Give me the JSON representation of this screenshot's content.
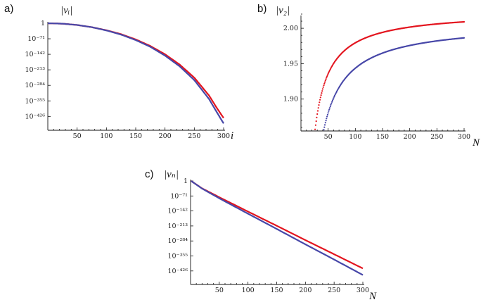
{
  "colors": {
    "red": "#e3141e",
    "blue": "#4747a8",
    "axis": "#111111"
  },
  "chart_data": [
    {
      "panel": "a)",
      "type": "line",
      "ylabel": "|v_i|",
      "ylabel_display": "|vᵢ|",
      "xlabel": "i",
      "xlim": [
        0,
        300
      ],
      "ylim_exponent": [
        -470,
        0
      ],
      "xticks": [
        50,
        100,
        150,
        200,
        250,
        300
      ],
      "yticks": [
        {
          "exp": 0,
          "label": "1"
        },
        {
          "exp": -71,
          "label": "10⁻⁷¹"
        },
        {
          "exp": -142,
          "label": "10⁻¹⁴²"
        },
        {
          "exp": -213,
          "label": "10⁻²¹³"
        },
        {
          "exp": -284,
          "label": "10⁻²⁸⁴"
        },
        {
          "exp": -355,
          "label": "10⁻³⁵⁵"
        },
        {
          "exp": -426,
          "label": "10⁻⁴²⁶"
        }
      ],
      "scale": "log",
      "series": [
        {
          "color": "red",
          "x": [
            0,
            25,
            50,
            75,
            100,
            125,
            150,
            175,
            200,
            225,
            250,
            275,
            290,
            300
          ],
          "y_exp": [
            0,
            -2,
            -8,
            -18,
            -32,
            -50,
            -74,
            -104,
            -142,
            -189,
            -249,
            -330,
            -394,
            -433
          ]
        },
        {
          "color": "blue",
          "x": [
            0,
            25,
            50,
            75,
            100,
            125,
            150,
            175,
            200,
            225,
            250,
            275,
            290,
            300
          ],
          "y_exp": [
            0,
            -2,
            -8,
            -18,
            -33,
            -52,
            -77,
            -108,
            -148,
            -197,
            -260,
            -346,
            -414,
            -458
          ]
        }
      ]
    },
    {
      "panel": "b)",
      "type": "scatter",
      "ylabel": "|v_2|",
      "ylabel_display": "|v₂|",
      "xlabel": "N",
      "xlim": [
        0,
        300
      ],
      "ylim": [
        1.855,
        2.02
      ],
      "xticks": [
        50,
        100,
        150,
        200,
        250,
        300
      ],
      "yticks": [
        {
          "value": 1.9,
          "label": "1.90"
        },
        {
          "value": 1.95,
          "label": "1.95"
        },
        {
          "value": 2.0,
          "label": "2.00"
        }
      ],
      "series": [
        {
          "color": "red",
          "model": {
            "a": 2.024,
            "b": 4.5,
            "c": 0
          },
          "x_range": [
            26,
            300
          ]
        },
        {
          "color": "blue",
          "model": {
            "a": 2.008,
            "b": 6.5,
            "c": 0
          },
          "x_range": [
            26,
            300
          ]
        }
      ]
    },
    {
      "panel": "c)",
      "type": "line",
      "ylabel": "|v_N|",
      "ylabel_display": "|vₙ|",
      "xlabel": "N",
      "xlim": [
        0,
        300
      ],
      "ylim_exponent": [
        -470,
        0
      ],
      "xticks": [
        50,
        100,
        150,
        200,
        250,
        300
      ],
      "yticks": [
        {
          "exp": 0,
          "label": "1"
        },
        {
          "exp": -71,
          "label": "10⁻⁷¹"
        },
        {
          "exp": -142,
          "label": "10⁻¹⁴²"
        },
        {
          "exp": -213,
          "label": "10⁻²¹³"
        },
        {
          "exp": -284,
          "label": "10⁻²⁸⁴"
        },
        {
          "exp": -355,
          "label": "10⁻³⁵⁵"
        },
        {
          "exp": -426,
          "label": "10⁻⁴²⁶"
        }
      ],
      "scale": "log",
      "series": [
        {
          "color": "red",
          "x": [
            1,
            20,
            50,
            100,
            150,
            200,
            250,
            300
          ],
          "y_exp": [
            0,
            -35,
            -77,
            -145,
            -212,
            -280,
            -347,
            -414
          ]
        },
        {
          "color": "blue",
          "x": [
            1,
            20,
            50,
            100,
            150,
            200,
            250,
            300
          ],
          "y_exp": [
            0,
            -36,
            -82,
            -155,
            -227,
            -300,
            -372,
            -445
          ]
        }
      ]
    }
  ]
}
